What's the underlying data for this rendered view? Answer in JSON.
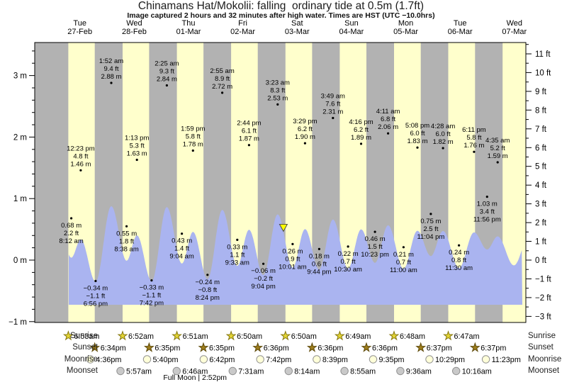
{
  "title": "Chinamans Hat/Mokolii: falling  ordinary tide at 0.5m (1.7ft)",
  "subtitle": "Image captured 2 hours and 32 minutes after high water. Times are HST (UTC −10.0hrs)",
  "colors": {
    "day_band": "#ffffcc",
    "night_band": "#b2b2b2",
    "tide_area": "#aab4f0",
    "header_red": "#ee3333",
    "marker_yellow": "#ffff00",
    "sunrise_star": "#e3d534",
    "sunrise_star_edge": "#85770f",
    "sunset_star": "#9d7d1c",
    "sunset_star_edge": "#5e4a0a",
    "moonrise_circle": "#ffffd9",
    "moonset_circle": "#c9c9c9",
    "moon_edge": "#909090"
  },
  "chart_data": {
    "type": "area",
    "title": "Chinamans Hat/Mokolii: falling  ordinary tide at 0.5m (1.7ft)",
    "ylabel_left_unit": "m",
    "ylabel_right_unit": "ft",
    "ylim_m": [
      -1,
      3.5
    ],
    "left_ticks_m": [
      3,
      2,
      1,
      0,
      -1
    ],
    "right_ticks_ft": [
      11,
      10,
      9,
      8,
      7,
      6,
      5,
      4,
      3,
      2,
      1,
      0,
      -1,
      -2,
      -3
    ],
    "days": [
      {
        "weekday": "Tue",
        "date": "27-Feb"
      },
      {
        "weekday": "Wed",
        "date": "28-Feb"
      },
      {
        "weekday": "Thu",
        "date": "01-Mar"
      },
      {
        "weekday": "Fri",
        "date": "02-Mar"
      },
      {
        "weekday": "Sat",
        "date": "03-Mar"
      },
      {
        "weekday": "Sun",
        "date": "04-Mar"
      },
      {
        "weekday": "Mon",
        "date": "05-Mar"
      },
      {
        "weekday": "Tue",
        "date": "06-Mar"
      },
      {
        "weekday": "Wed",
        "date": "07-Mar"
      }
    ],
    "tide_events": [
      {
        "day": 0,
        "type": "low",
        "m": "0.68 m",
        "ft": "2.2 ft",
        "time": "8:12 am"
      },
      {
        "day": 0,
        "type": "high",
        "time": "12:23 pm",
        "ft": "4.8 ft",
        "m": "1.46 m"
      },
      {
        "day": 0,
        "type": "low",
        "m": "−0.34 m",
        "ft": "−1.1 ft",
        "time": "6:56 pm"
      },
      {
        "day": 1,
        "type": "high",
        "time": "1:52 am",
        "ft": "9.4 ft",
        "m": "2.88 m"
      },
      {
        "day": 1,
        "type": "low",
        "m": "0.55 m",
        "ft": "1.8 ft",
        "time": "8:38 am"
      },
      {
        "day": 1,
        "type": "high",
        "time": "1:13 pm",
        "ft": "5.3 ft",
        "m": "1.63 m"
      },
      {
        "day": 1,
        "type": "low",
        "m": "−0.33 m",
        "ft": "−1.1 ft",
        "time": "7:42 pm"
      },
      {
        "day": 2,
        "type": "high",
        "time": "2:25 am",
        "ft": "9.3 ft",
        "m": "2.84 m"
      },
      {
        "day": 2,
        "type": "low",
        "m": "0.43 m",
        "ft": "1.4 ft",
        "time": "9:04 am"
      },
      {
        "day": 2,
        "type": "high",
        "time": "1:59 pm",
        "ft": "5.8 ft",
        "m": "1.78 m"
      },
      {
        "day": 2,
        "type": "low",
        "m": "−0.24 m",
        "ft": "−0.8 ft",
        "time": "8:24 pm"
      },
      {
        "day": 3,
        "type": "high",
        "time": "2:55 am",
        "ft": "8.9 ft",
        "m": "2.72 m"
      },
      {
        "day": 3,
        "type": "low",
        "m": "0.33 m",
        "ft": "1.1 ft",
        "time": "9:33 am"
      },
      {
        "day": 3,
        "type": "high",
        "time": "2:44 pm",
        "ft": "6.1 ft",
        "m": "1.87 m"
      },
      {
        "day": 3,
        "type": "low",
        "m": "−0.06 m",
        "ft": "−0.2 ft",
        "time": "9:04 pm"
      },
      {
        "day": 4,
        "type": "high",
        "time": "3:23 am",
        "ft": "8.3 ft",
        "m": "2.53 m"
      },
      {
        "day": 4,
        "type": "low",
        "m": "0.26 m",
        "ft": "0.9 ft",
        "time": "10:01 am"
      },
      {
        "day": 4,
        "type": "high",
        "time": "3:29 pm",
        "ft": "6.2 ft",
        "m": "1.90 m"
      },
      {
        "day": 4,
        "type": "low",
        "m": "0.18 m",
        "ft": "0.6 ft",
        "time": "9:44 pm"
      },
      {
        "day": 5,
        "type": "high",
        "time": "3:49 am",
        "ft": "7.6 ft",
        "m": "2.31 m"
      },
      {
        "day": 5,
        "type": "low",
        "m": "0.22 m",
        "ft": "0.7 ft",
        "time": "10:30 am"
      },
      {
        "day": 5,
        "type": "high",
        "time": "4:16 pm",
        "ft": "6.2 ft",
        "m": "1.89 m"
      },
      {
        "day": 5,
        "type": "low",
        "m": "0.46 m",
        "ft": "1.5 ft",
        "time": "10:23 pm"
      },
      {
        "day": 6,
        "type": "high",
        "time": "4:11 am",
        "ft": "6.8 ft",
        "m": "2.06 m"
      },
      {
        "day": 6,
        "type": "low",
        "m": "0.21 m",
        "ft": "0.7 ft",
        "time": "11:00 am"
      },
      {
        "day": 6,
        "type": "high",
        "time": "5:08 pm",
        "ft": "6.0 ft",
        "m": "1.83 m"
      },
      {
        "day": 6,
        "type": "low",
        "m": "0.75 m",
        "ft": "2.5 ft",
        "time": "11:04 pm"
      },
      {
        "day": 7,
        "type": "high",
        "time": "4:28 am",
        "ft": "6.0 ft",
        "m": "1.82 m"
      },
      {
        "day": 7,
        "type": "low",
        "m": "0.24 m",
        "ft": "0.8 ft",
        "time": "11:30 am"
      },
      {
        "day": 7,
        "type": "high",
        "time": "6:11 pm",
        "ft": "5.8 ft",
        "m": "1.76 m"
      },
      {
        "day": 7,
        "type": "low",
        "m": "1.03 m",
        "ft": "3.4 ft",
        "time": "11:56 pm"
      },
      {
        "day": 8,
        "type": "high",
        "time": "4:35 am",
        "ft": "5.2 ft",
        "m": "1.59 m"
      }
    ],
    "current_marker": {
      "day": 4,
      "time": "5:55 am",
      "level_m_label": "0.5m (1.7ft)",
      "state": "falling"
    },
    "astro": {
      "row_labels": [
        "Sunrise",
        "Sunset",
        "Moonrise",
        "Moonset"
      ],
      "sunrise": [
        {
          "day": 0,
          "time": "6:53am"
        },
        {
          "day": 1,
          "time": "6:52am"
        },
        {
          "day": 2,
          "time": "6:51am"
        },
        {
          "day": 3,
          "time": "6:50am"
        },
        {
          "day": 4,
          "time": "6:50am"
        },
        {
          "day": 5,
          "time": "6:49am"
        },
        {
          "day": 6,
          "time": "6:48am"
        },
        {
          "day": 7,
          "time": "6:47am"
        }
      ],
      "sunset": [
        {
          "day": 0,
          "time": "6:34pm"
        },
        {
          "day": 1,
          "time": "6:35pm"
        },
        {
          "day": 2,
          "time": "6:35pm"
        },
        {
          "day": 3,
          "time": "6:36pm"
        },
        {
          "day": 4,
          "time": "6:36pm"
        },
        {
          "day": 5,
          "time": "6:36pm"
        },
        {
          "day": 6,
          "time": "6:37pm"
        },
        {
          "day": 7,
          "time": "6:37pm"
        }
      ],
      "moonrise": [
        {
          "day": 0,
          "time": "4:36pm"
        },
        {
          "day": 1,
          "time": "5:40pm"
        },
        {
          "day": 2,
          "time": "6:42pm"
        },
        {
          "day": 3,
          "time": "7:42pm"
        },
        {
          "day": 4,
          "time": "8:39pm"
        },
        {
          "day": 5,
          "time": "9:35pm"
        },
        {
          "day": 6,
          "time": "10:29pm"
        },
        {
          "day": 7,
          "time": "11:23pm"
        }
      ],
      "moonset": [
        {
          "day": 1,
          "time": "5:57am"
        },
        {
          "day": 2,
          "time": "6:46am"
        },
        {
          "day": 3,
          "time": "7:31am"
        },
        {
          "day": 4,
          "time": "8:14am"
        },
        {
          "day": 5,
          "time": "8:55am"
        },
        {
          "day": 6,
          "time": "9:36am"
        },
        {
          "day": 7,
          "time": "10:16am"
        }
      ],
      "full_moon": {
        "label": "Full Moon",
        "separator": "|",
        "time": "2:52pm",
        "day": 2
      }
    }
  }
}
